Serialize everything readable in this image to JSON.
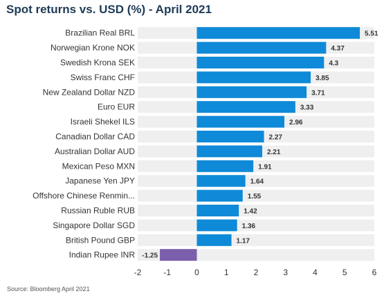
{
  "chart_data": {
    "type": "bar",
    "orientation": "horizontal",
    "title": "Spot returns vs. USD (%) - April 2021",
    "source": "Source: Bloomberg April 2021",
    "categories": [
      "Brazilian Real BRL",
      "Norwegian Krone NOK",
      "Swedish Krona SEK",
      "Swiss Franc CHF",
      "New Zealand Dollar NZD",
      "Euro EUR",
      "Israeli Shekel ILS",
      "Canadian Dollar CAD",
      "Australian Dollar AUD",
      "Mexican Peso MXN",
      "Japanese Yen JPY",
      "Offshore Chinese Renmin...",
      "Russian Ruble RUB",
      "Singapore Dollar SGD",
      "British Pound GBP",
      "Indian Rupee INR"
    ],
    "values": [
      5.51,
      4.37,
      4.3,
      3.85,
      3.71,
      3.33,
      2.96,
      2.27,
      2.21,
      1.91,
      1.64,
      1.55,
      1.42,
      1.36,
      1.17,
      -1.25
    ],
    "data_labels": [
      "5.51",
      "4.37",
      "4.3",
      "3.85",
      "3.71",
      "3.33",
      "2.96",
      "2.27",
      "2.21",
      "1.91",
      "1.64",
      "1.55",
      "1.42",
      "1.36",
      "1.17",
      "-1.25"
    ],
    "xlim": [
      -2,
      6
    ],
    "xticks": [
      "-2",
      "-1",
      "0",
      "1",
      "2",
      "3",
      "4",
      "5",
      "6"
    ],
    "legend": "none",
    "colors": {
      "positive": "#0f8ad8",
      "negative": "#7b5eac",
      "row_band": "#efefef",
      "title": "#1e3a56",
      "label": "#333333"
    }
  }
}
